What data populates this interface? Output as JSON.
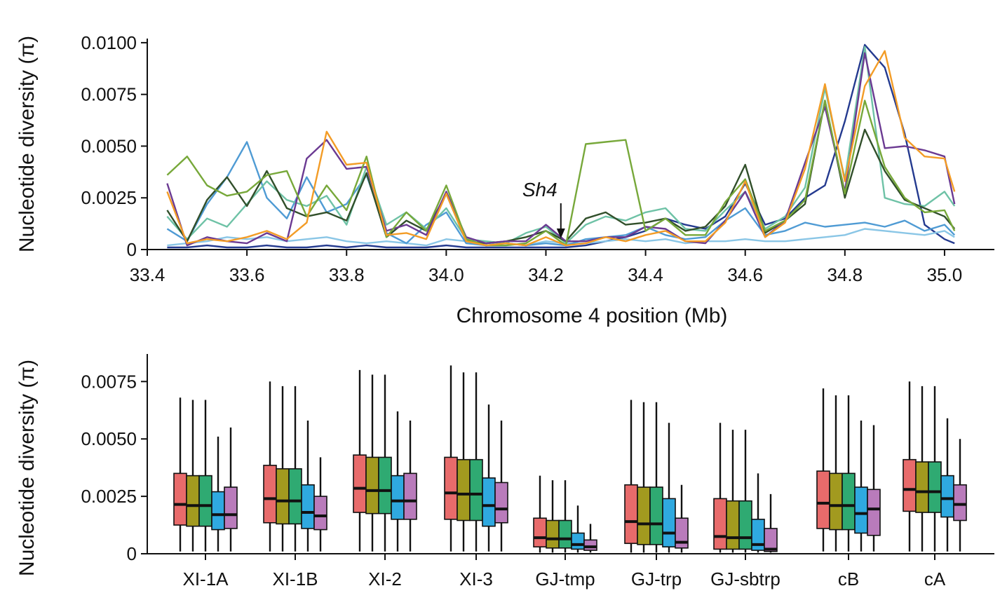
{
  "chart_data": [
    {
      "type": "line",
      "xlabel": "Chromosome 4 position (Mb)",
      "ylabel": "Nucleotide diversity (π)",
      "xlim": [
        33.4,
        35.1
      ],
      "ylim": [
        0,
        0.0102
      ],
      "xticks": [
        "33.4",
        "33.6",
        "33.8",
        "34.0",
        "34.2",
        "34.4",
        "34.6",
        "34.8",
        "35.0"
      ],
      "yticks": [
        "0",
        "0.0025",
        "0.0050",
        "0.0075",
        "0.0100"
      ],
      "annotation": {
        "label": "Sh4",
        "x": 34.23
      },
      "legend": "none",
      "x": [
        33.44,
        33.48,
        33.52,
        33.56,
        33.6,
        33.64,
        33.68,
        33.72,
        33.76,
        33.8,
        33.84,
        33.88,
        33.92,
        33.96,
        34.0,
        34.04,
        34.08,
        34.12,
        34.16,
        34.2,
        34.24,
        34.28,
        34.32,
        34.36,
        34.4,
        34.44,
        34.48,
        34.52,
        34.56,
        34.6,
        34.64,
        34.68,
        34.72,
        34.76,
        34.8,
        34.84,
        34.88,
        34.92,
        34.96,
        35.0,
        35.02
      ],
      "series": [
        {
          "color": "#243a8f",
          "values": [
            0.0001,
            0.0001,
            0.0002,
            0.0001,
            0.0001,
            0.0002,
            0.0001,
            0.0001,
            0.0002,
            0.0001,
            0.0002,
            0.0001,
            0.0001,
            0.0001,
            0.0002,
            0.0001,
            0.0001,
            0.0001,
            0.0001,
            0.0001,
            0.0001,
            0.0002,
            0.0004,
            0.0006,
            0.0009,
            0.0015,
            0.0012,
            0.001,
            0.0016,
            0.0032,
            0.0012,
            0.0015,
            0.0025,
            0.0031,
            0.0062,
            0.0099,
            0.0088,
            0.0056,
            0.0012,
            0.0005,
            0.0003
          ]
        },
        {
          "color": "#8ac6e6",
          "values": [
            0.0002,
            0.0003,
            0.0004,
            0.0006,
            0.0005,
            0.0006,
            0.0004,
            0.0005,
            0.0006,
            0.0004,
            0.0003,
            0.0004,
            0.0003,
            0.0002,
            0.0005,
            0.0004,
            0.0003,
            0.0003,
            0.0002,
            0.0004,
            0.0003,
            0.0003,
            0.0004,
            0.0005,
            0.0004,
            0.0005,
            0.0003,
            0.0004,
            0.0004,
            0.0005,
            0.0004,
            0.0004,
            0.0005,
            0.0006,
            0.0007,
            0.001,
            0.0009,
            0.0008,
            0.0007,
            0.0009,
            0.0006
          ]
        },
        {
          "color": "#4f9bd4",
          "values": [
            0.001,
            0.0004,
            0.0022,
            0.0035,
            0.0052,
            0.0025,
            0.0015,
            0.0035,
            0.0018,
            0.0022,
            0.0036,
            0.0008,
            0.0003,
            0.0012,
            0.0018,
            0.0003,
            0.0002,
            0.0003,
            0.0002,
            0.0003,
            0.0002,
            0.0005,
            0.0006,
            0.0007,
            0.0011,
            0.0007,
            0.0005,
            0.0006,
            0.0014,
            0.002,
            0.0007,
            0.0009,
            0.0013,
            0.0011,
            0.0012,
            0.0013,
            0.0011,
            0.0014,
            0.0009,
            0.0012,
            0.0007
          ]
        },
        {
          "color": "#6ec2a6",
          "values": [
            0.0016,
            0.0005,
            0.0015,
            0.0011,
            0.0022,
            0.0033,
            0.0024,
            0.0021,
            0.0026,
            0.0012,
            0.004,
            0.0012,
            0.0018,
            0.001,
            0.002,
            0.0005,
            0.0004,
            0.0003,
            0.0008,
            0.0011,
            0.0003,
            0.0012,
            0.0016,
            0.0014,
            0.0018,
            0.002,
            0.001,
            0.0009,
            0.0019,
            0.0028,
            0.001,
            0.0016,
            0.003,
            0.0078,
            0.0034,
            0.0098,
            0.0025,
            0.0022,
            0.0021,
            0.0028,
            0.0021
          ]
        },
        {
          "color": "#314f2a",
          "values": [
            0.0019,
            0.0004,
            0.0024,
            0.0035,
            0.0021,
            0.0038,
            0.002,
            0.0016,
            0.0018,
            0.0014,
            0.0037,
            0.0006,
            0.0014,
            0.0009,
            0.0027,
            0.0004,
            0.0003,
            0.0004,
            0.0006,
            0.0009,
            0.0004,
            0.0015,
            0.0018,
            0.0012,
            0.0013,
            0.0015,
            0.0009,
            0.0011,
            0.0021,
            0.0041,
            0.0008,
            0.0014,
            0.0022,
            0.0072,
            0.0025,
            0.0058,
            0.0038,
            0.0024,
            0.002,
            0.0016,
            0.001
          ]
        },
        {
          "color": "#6b3a92",
          "values": [
            0.0032,
            0.0002,
            0.0006,
            0.0004,
            0.0003,
            0.0008,
            0.0004,
            0.0044,
            0.0053,
            0.0039,
            0.004,
            0.0009,
            0.0012,
            0.0007,
            0.0028,
            0.0006,
            0.0003,
            0.0004,
            0.0004,
            0.0012,
            0.0004,
            0.0004,
            0.0006,
            0.0006,
            0.0011,
            0.001,
            0.0004,
            0.0003,
            0.0014,
            0.0028,
            0.0006,
            0.0014,
            0.0042,
            0.0069,
            0.0028,
            0.0095,
            0.0049,
            0.005,
            0.0048,
            0.0045,
            0.0022
          ]
        },
        {
          "color": "#77a83a",
          "values": [
            0.0036,
            0.0045,
            0.0031,
            0.0026,
            0.0028,
            0.0036,
            0.0038,
            0.0016,
            0.0031,
            0.0019,
            0.0045,
            0.0006,
            0.0018,
            0.0009,
            0.0031,
            0.0005,
            0.0002,
            0.0002,
            0.0003,
            0.0009,
            0.0002,
            0.0051,
            0.0052,
            0.0053,
            0.0009,
            0.0015,
            0.0007,
            0.0007,
            0.0023,
            0.0034,
            0.0009,
            0.0014,
            0.0024,
            0.0072,
            0.0027,
            0.0072,
            0.004,
            0.0025,
            0.0018,
            0.0019,
            0.0009
          ]
        },
        {
          "color": "#f39c26",
          "values": [
            0.0028,
            0.0003,
            0.0005,
            0.0004,
            0.0006,
            0.0009,
            0.0005,
            0.0013,
            0.0057,
            0.0041,
            0.0042,
            0.0007,
            0.0008,
            0.0005,
            0.0027,
            0.0004,
            0.0002,
            0.0003,
            0.0002,
            0.0006,
            0.0002,
            0.0003,
            0.0006,
            0.0004,
            0.0007,
            0.0009,
            0.0004,
            0.0004,
            0.0013,
            0.0033,
            0.0006,
            0.0013,
            0.0039,
            0.008,
            0.0033,
            0.0079,
            0.0096,
            0.0054,
            0.0045,
            0.0044,
            0.0028
          ]
        }
      ]
    },
    {
      "type": "box",
      "ylabel": "Nucleotide diversity (π)",
      "ylim": [
        0,
        0.0087
      ],
      "yticks": [
        "0",
        "0.0025",
        "0.0050",
        "0.0075"
      ],
      "categories": [
        "XI-1A",
        "XI-1B",
        "XI-2",
        "XI-3",
        "GJ-tmp",
        "GJ-trp",
        "GJ-sbtrp",
        "cB",
        "cA"
      ],
      "series_colors": [
        "#e86b6b",
        "#a29a1f",
        "#2faa72",
        "#2fa9e0",
        "#b97bbb"
      ],
      "legend": "none",
      "groups": [
        {
          "boxes": [
            {
              "min": 0.0001,
              "q1": 0.00125,
              "median": 0.00215,
              "q3": 0.0035,
              "max": 0.0068
            },
            {
              "min": 0.0001,
              "q1": 0.0012,
              "median": 0.0021,
              "q3": 0.0034,
              "max": 0.0067
            },
            {
              "min": 0.0001,
              "q1": 0.0012,
              "median": 0.0021,
              "q3": 0.0034,
              "max": 0.0067
            },
            {
              "min": 0.0001,
              "q1": 0.00105,
              "median": 0.0017,
              "q3": 0.0027,
              "max": 0.0051
            },
            {
              "min": 0.0001,
              "q1": 0.0011,
              "median": 0.0017,
              "q3": 0.0029,
              "max": 0.0055
            }
          ]
        },
        {
          "boxes": [
            {
              "min": 0.0001,
              "q1": 0.00135,
              "median": 0.0024,
              "q3": 0.00385,
              "max": 0.0075
            },
            {
              "min": 0.0001,
              "q1": 0.0013,
              "median": 0.0023,
              "q3": 0.0037,
              "max": 0.0073
            },
            {
              "min": 0.0001,
              "q1": 0.0013,
              "median": 0.0023,
              "q3": 0.0037,
              "max": 0.0073
            },
            {
              "min": 0.0001,
              "q1": 0.0011,
              "median": 0.0018,
              "q3": 0.003,
              "max": 0.0058
            },
            {
              "min": 0.0001,
              "q1": 0.00105,
              "median": 0.00165,
              "q3": 0.0025,
              "max": 0.0042
            }
          ]
        },
        {
          "boxes": [
            {
              "min": 0.0001,
              "q1": 0.0018,
              "median": 0.00285,
              "q3": 0.0043,
              "max": 0.008
            },
            {
              "min": 0.0001,
              "q1": 0.00175,
              "median": 0.00275,
              "q3": 0.0042,
              "max": 0.0078
            },
            {
              "min": 0.0001,
              "q1": 0.00175,
              "median": 0.00275,
              "q3": 0.0042,
              "max": 0.0078
            },
            {
              "min": 0.0001,
              "q1": 0.0015,
              "median": 0.0023,
              "q3": 0.0034,
              "max": 0.0062
            },
            {
              "min": 0.0001,
              "q1": 0.0015,
              "median": 0.0023,
              "q3": 0.0035,
              "max": 0.0058
            }
          ]
        },
        {
          "boxes": [
            {
              "min": 0.0001,
              "q1": 0.0015,
              "median": 0.00265,
              "q3": 0.0042,
              "max": 0.0082
            },
            {
              "min": 0.0001,
              "q1": 0.00145,
              "median": 0.0026,
              "q3": 0.0041,
              "max": 0.0079
            },
            {
              "min": 0.0001,
              "q1": 0.00145,
              "median": 0.0026,
              "q3": 0.0041,
              "max": 0.0079
            },
            {
              "min": 0.0001,
              "q1": 0.0012,
              "median": 0.0021,
              "q3": 0.0033,
              "max": 0.0065
            },
            {
              "min": 0.0001,
              "q1": 0.00135,
              "median": 0.00195,
              "q3": 0.0031,
              "max": 0.0058
            }
          ]
        },
        {
          "boxes": [
            {
              "min": 5e-05,
              "q1": 0.0003,
              "median": 0.0007,
              "q3": 0.00155,
              "max": 0.0034
            },
            {
              "min": 5e-05,
              "q1": 0.00025,
              "median": 0.00065,
              "q3": 0.00145,
              "max": 0.0032
            },
            {
              "min": 5e-05,
              "q1": 0.00025,
              "median": 0.00065,
              "q3": 0.00145,
              "max": 0.0032
            },
            {
              "min": 5e-05,
              "q1": 0.0002,
              "median": 0.0004,
              "q3": 0.0009,
              "max": 0.0021
            },
            {
              "min": 5e-05,
              "q1": 0.00015,
              "median": 0.0003,
              "q3": 0.0006,
              "max": 0.0013
            }
          ]
        },
        {
          "boxes": [
            {
              "min": 5e-05,
              "q1": 0.00045,
              "median": 0.0014,
              "q3": 0.003,
              "max": 0.0067
            },
            {
              "min": 5e-05,
              "q1": 0.0004,
              "median": 0.0013,
              "q3": 0.0029,
              "max": 0.0066
            },
            {
              "min": 5e-05,
              "q1": 0.0004,
              "median": 0.0013,
              "q3": 0.0029,
              "max": 0.0066
            },
            {
              "min": 5e-05,
              "q1": 0.0003,
              "median": 0.0009,
              "q3": 0.0024,
              "max": 0.0057
            },
            {
              "min": 5e-05,
              "q1": 0.00025,
              "median": 0.0005,
              "q3": 0.00155,
              "max": 0.003
            }
          ]
        },
        {
          "boxes": [
            {
              "min": 5e-05,
              "q1": 0.0002,
              "median": 0.00075,
              "q3": 0.0024,
              "max": 0.0057
            },
            {
              "min": 5e-05,
              "q1": 0.0002,
              "median": 0.0007,
              "q3": 0.0023,
              "max": 0.0054
            },
            {
              "min": 5e-05,
              "q1": 0.0002,
              "median": 0.0007,
              "q3": 0.0023,
              "max": 0.0054
            },
            {
              "min": 5e-05,
              "q1": 0.00015,
              "median": 0.0004,
              "q3": 0.0015,
              "max": 0.0035
            },
            {
              "min": 5e-05,
              "q1": 0.0001,
              "median": 0.0002,
              "q3": 0.0011,
              "max": 0.0026
            }
          ]
        },
        {
          "boxes": [
            {
              "min": 0.0001,
              "q1": 0.0011,
              "median": 0.0022,
              "q3": 0.0036,
              "max": 0.0072
            },
            {
              "min": 0.0001,
              "q1": 0.00105,
              "median": 0.0021,
              "q3": 0.0035,
              "max": 0.0069
            },
            {
              "min": 0.0001,
              "q1": 0.00105,
              "median": 0.0021,
              "q3": 0.0035,
              "max": 0.0069
            },
            {
              "min": 0.0001,
              "q1": 0.0009,
              "median": 0.00175,
              "q3": 0.0029,
              "max": 0.0058
            },
            {
              "min": 0.0001,
              "q1": 0.0008,
              "median": 0.00195,
              "q3": 0.0028,
              "max": 0.0056
            }
          ]
        },
        {
          "boxes": [
            {
              "min": 0.0001,
              "q1": 0.00185,
              "median": 0.0028,
              "q3": 0.0041,
              "max": 0.0075
            },
            {
              "min": 0.0001,
              "q1": 0.0018,
              "median": 0.0027,
              "q3": 0.004,
              "max": 0.0073
            },
            {
              "min": 0.0001,
              "q1": 0.0018,
              "median": 0.0027,
              "q3": 0.004,
              "max": 0.0073
            },
            {
              "min": 0.0001,
              "q1": 0.0016,
              "median": 0.0024,
              "q3": 0.0034,
              "max": 0.0059
            },
            {
              "min": 0.0001,
              "q1": 0.00145,
              "median": 0.00215,
              "q3": 0.003,
              "max": 0.005
            }
          ]
        }
      ]
    }
  ]
}
